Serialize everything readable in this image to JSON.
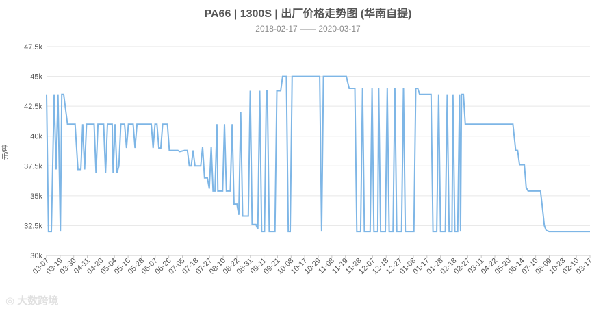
{
  "chart_data": {
    "type": "line",
    "title": "PA66 | 1300S | 出厂价格走势图 (华南自提)",
    "subtitle": "2018-02-17 —— 2020-03-17",
    "ylabel": "元/吨",
    "ylim": [
      30000,
      47500
    ],
    "y_ticks": [
      "30k",
      "32.5k",
      "35k",
      "37.5k",
      "40k",
      "42.5k",
      "45k",
      "47.5k"
    ],
    "grid": true,
    "line_color": "#7eb6e6",
    "x_ticks": [
      "03-07",
      "03-19",
      "03-30",
      "04-11",
      "04-20",
      "05-04",
      "05-16",
      "05-28",
      "06-07",
      "06-26",
      "07-05",
      "07-18",
      "07-27",
      "08-10",
      "08-22",
      "08-31",
      "09-11",
      "09-21",
      "10-08",
      "10-17",
      "10-29",
      "11-08",
      "11-19",
      "11-28",
      "12-07",
      "12-18",
      "12-27",
      "01-08",
      "01-17",
      "01-28",
      "02-18",
      "02-27",
      "03-11",
      "04-22",
      "05-20",
      "06-14",
      "07-10",
      "08-09",
      "10-23",
      "02-10",
      "03-17"
    ],
    "series": [
      {
        "values": [
          [
            0,
            43500
          ],
          [
            0.2,
            32000
          ],
          [
            0.5,
            32000
          ],
          [
            0.8,
            43500
          ],
          [
            1.0,
            37200
          ],
          [
            1.2,
            43500
          ],
          [
            1.45,
            32000
          ],
          [
            1.6,
            43500
          ],
          [
            1.8,
            43500
          ],
          [
            2.2,
            41000
          ],
          [
            3.0,
            41000
          ],
          [
            3.3,
            37200
          ],
          [
            3.6,
            37200
          ],
          [
            3.8,
            41000
          ],
          [
            4.0,
            37200
          ],
          [
            4.2,
            41000
          ],
          [
            5.0,
            41000
          ],
          [
            5.2,
            36900
          ],
          [
            5.4,
            41000
          ],
          [
            6.0,
            41000
          ],
          [
            6.2,
            36900
          ],
          [
            6.4,
            41000
          ],
          [
            6.9,
            41000
          ],
          [
            7.0,
            36900
          ],
          [
            7.2,
            41000
          ],
          [
            7.4,
            36900
          ],
          [
            7.6,
            37500
          ],
          [
            7.8,
            41000
          ],
          [
            8.2,
            41000
          ],
          [
            8.4,
            39000
          ],
          [
            8.6,
            41000
          ],
          [
            9.1,
            41000
          ],
          [
            9.3,
            39000
          ],
          [
            9.5,
            41000
          ],
          [
            10.0,
            41000
          ],
          [
            10.2,
            41000
          ],
          [
            11.0,
            41000
          ],
          [
            11.2,
            39000
          ],
          [
            11.4,
            41000
          ],
          [
            11.6,
            41000
          ],
          [
            11.8,
            39000
          ],
          [
            12.0,
            39000
          ],
          [
            12.2,
            41000
          ],
          [
            12.7,
            41000
          ],
          [
            12.9,
            38800
          ],
          [
            13.8,
            38800
          ],
          [
            14.0,
            38700
          ],
          [
            14.5,
            38800
          ],
          [
            14.8,
            38800
          ],
          [
            15.0,
            37500
          ],
          [
            15.2,
            37500
          ],
          [
            15.4,
            38800
          ],
          [
            15.6,
            37500
          ],
          [
            16.0,
            37500
          ],
          [
            16.2,
            37500
          ],
          [
            16.4,
            39100
          ],
          [
            16.6,
            36500
          ],
          [
            16.9,
            36500
          ],
          [
            17.1,
            35600
          ],
          [
            17.3,
            39100
          ],
          [
            17.5,
            35400
          ],
          [
            17.7,
            35400
          ],
          [
            17.9,
            41000
          ],
          [
            18.0,
            35400
          ],
          [
            18.5,
            35400
          ],
          [
            18.7,
            41000
          ],
          [
            18.9,
            35400
          ],
          [
            19.1,
            35400
          ],
          [
            19.3,
            35400
          ],
          [
            19.5,
            41000
          ],
          [
            19.7,
            34300
          ],
          [
            20.0,
            34300
          ],
          [
            20.2,
            33400
          ],
          [
            20.4,
            42000
          ],
          [
            20.6,
            33300
          ],
          [
            21.2,
            33300
          ],
          [
            21.4,
            43800
          ],
          [
            21.6,
            32600
          ],
          [
            22.0,
            32600
          ],
          [
            22.2,
            32200
          ],
          [
            22.4,
            43800
          ],
          [
            22.6,
            32000
          ],
          [
            22.9,
            32000
          ],
          [
            23.1,
            43800
          ],
          [
            23.2,
            43800
          ],
          [
            23.4,
            32000
          ],
          [
            24.0,
            32000
          ],
          [
            24.2,
            43800
          ],
          [
            24.6,
            43800
          ],
          [
            24.8,
            45000
          ],
          [
            25.2,
            45000
          ],
          [
            25.4,
            32000
          ],
          [
            25.6,
            32000
          ],
          [
            25.8,
            45000
          ],
          [
            28.7,
            45000
          ],
          [
            28.9,
            32000
          ],
          [
            29.1,
            45000
          ],
          [
            31.5,
            45000
          ],
          [
            31.8,
            44000
          ],
          [
            32.4,
            44000
          ],
          [
            32.6,
            32000
          ],
          [
            33.0,
            32000
          ],
          [
            33.2,
            44000
          ],
          [
            33.4,
            32000
          ],
          [
            34.0,
            32000
          ],
          [
            34.2,
            44000
          ],
          [
            34.4,
            32000
          ],
          [
            34.8,
            32000
          ],
          [
            34.9,
            44000
          ],
          [
            35.1,
            32000
          ],
          [
            35.6,
            32000
          ],
          [
            35.8,
            44000
          ],
          [
            36.0,
            32000
          ],
          [
            36.4,
            32000
          ],
          [
            36.6,
            44000
          ],
          [
            36.8,
            32000
          ],
          [
            37.3,
            32000
          ],
          [
            37.5,
            44000
          ],
          [
            37.7,
            32000
          ],
          [
            38.6,
            32000
          ],
          [
            38.8,
            44000
          ],
          [
            39.0,
            44000
          ],
          [
            39.2,
            43500
          ],
          [
            40.4,
            43500
          ],
          [
            40.6,
            32000
          ],
          [
            41.0,
            32000
          ],
          [
            41.2,
            43500
          ],
          [
            41.4,
            32000
          ],
          [
            41.9,
            32000
          ],
          [
            42.1,
            43500
          ],
          [
            42.3,
            32000
          ],
          [
            42.6,
            32000
          ],
          [
            42.7,
            43500
          ],
          [
            42.9,
            32000
          ],
          [
            43.2,
            32000
          ],
          [
            43.4,
            43500
          ],
          [
            43.5,
            32000
          ],
          [
            43.6,
            43500
          ],
          [
            43.8,
            43500
          ],
          [
            44.0,
            41000
          ],
          [
            45.0,
            41000
          ],
          [
            47.0,
            41000
          ],
          [
            49.0,
            41000
          ],
          [
            49.3,
            38800
          ],
          [
            49.5,
            38800
          ],
          [
            49.7,
            37600
          ],
          [
            50.2,
            37600
          ],
          [
            50.4,
            35700
          ],
          [
            50.6,
            35400
          ],
          [
            51.9,
            35400
          ],
          [
            52.1,
            34000
          ],
          [
            52.3,
            32500
          ],
          [
            52.5,
            32100
          ],
          [
            52.8,
            32000
          ],
          [
            54.0,
            32000
          ],
          [
            56.0,
            32000
          ],
          [
            57.1,
            32000
          ]
        ]
      }
    ]
  },
  "watermark": "大数跨境"
}
